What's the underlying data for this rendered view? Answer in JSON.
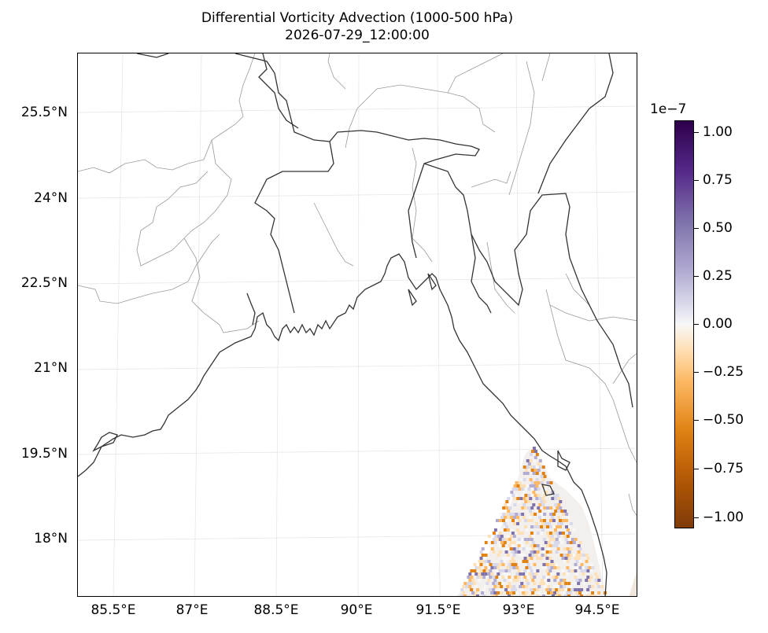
{
  "title": {
    "line1": "Differential Vorticity Advection (1000-500 hPa)",
    "line2": "2026-07-29_12:00:00"
  },
  "map": {
    "lat_labels": [
      "25.5°N",
      "24°N",
      "22.5°N",
      "21°N",
      "19.5°N",
      "18°N"
    ],
    "lon_labels": [
      "85.5°E",
      "87°E",
      "88.5°E",
      "90°E",
      "91.5°E",
      "93°E",
      "94.5°E"
    ],
    "field": "differential vorticity advection, nonzero only over SE corner (ocean near Myanmar coast)",
    "colormap": "PuOr_r"
  },
  "colorbar": {
    "exponent": "1e−7",
    "ticks": [
      "1.00",
      "0.75",
      "0.50",
      "0.25",
      "0.00",
      "−0.25",
      "−0.50",
      "−0.75",
      "−1.00"
    ],
    "range": [
      -1.05,
      1.05
    ],
    "colors": {
      "max": "#2d004b",
      "mid": "#f7f7f7",
      "min": "#7f3b08"
    }
  }
}
